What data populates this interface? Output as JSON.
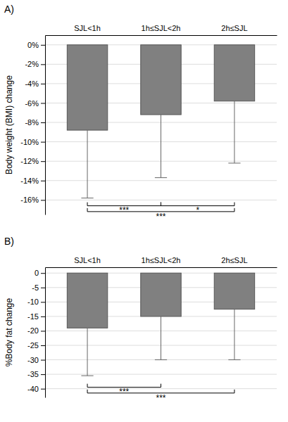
{
  "chart_data": [
    {
      "type": "bar",
      "title": "A)",
      "categories": [
        "SJL<1h",
        "1h≤SJL<2h",
        "2h≤SJL"
      ],
      "values": [
        -8.8,
        -7.2,
        -5.8
      ],
      "error_low": [
        -15.8,
        -13.7,
        -12.2
      ],
      "color": "#808080",
      "ylabel": "Body weight (BMI) change",
      "ylim": [
        -17.5,
        1.0
      ],
      "yticks": [
        {
          "value": 0,
          "label": "0%"
        },
        {
          "value": -2,
          "label": "-2%"
        },
        {
          "value": -4,
          "label": "-4%"
        },
        {
          "value": -6,
          "label": "-6%"
        },
        {
          "value": -8,
          "label": "-8%"
        },
        {
          "value": -10,
          "label": "-10%"
        },
        {
          "value": -12,
          "label": "-12%"
        },
        {
          "value": -14,
          "label": "-14%"
        },
        {
          "value": -16,
          "label": "-16%"
        }
      ],
      "grid": true,
      "annotations": [
        {
          "text": "***",
          "from": "SJL<1h",
          "to": "1h≤SJL<2h",
          "y": -16.6
        },
        {
          "text": "*",
          "from": "1h≤SJL<2h",
          "to": "2h≤SJL",
          "y": -16.6
        },
        {
          "text": "***",
          "from": "SJL<1h",
          "to": "2h≤SJL",
          "y": -17.2
        }
      ]
    },
    {
      "type": "bar",
      "title": "B)",
      "categories": [
        "SJL<1h",
        "1h≤SJL<2h",
        "2h≤SJL"
      ],
      "values": [
        -19.0,
        -15.0,
        -12.5
      ],
      "error_low": [
        -35.5,
        -30.0,
        -30.0
      ],
      "color": "#808080",
      "ylabel": "%Body fat change",
      "ylim": [
        -43,
        2
      ],
      "yticks": [
        0,
        -5,
        -10,
        -15,
        -20,
        -25,
        -30,
        -35,
        -40
      ],
      "grid": true,
      "annotations": [
        {
          "text": "***",
          "from": "SJL<1h",
          "to": "1h≤SJL<2h",
          "y": -39.5
        },
        {
          "text": "***",
          "from": "SJL<1h",
          "to": "2h≤SJL",
          "y": -41.5
        }
      ]
    }
  ]
}
